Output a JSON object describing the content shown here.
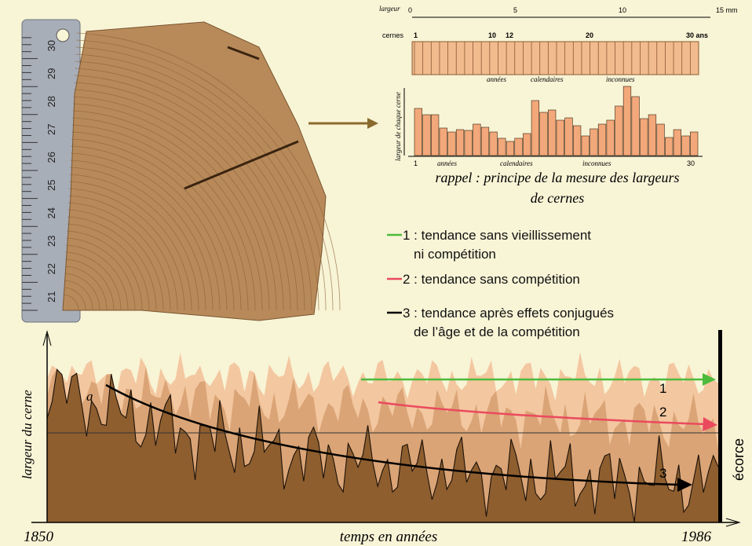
{
  "ruler": {
    "labels": [
      "21",
      "22",
      "23",
      "24",
      "25",
      "26",
      "27",
      "28",
      "29",
      "30"
    ]
  },
  "inset": {
    "width_label": "largeur",
    "width_ticks": [
      "0",
      "5",
      "10",
      "15 mm"
    ],
    "rings_label": "cernes",
    "ring_ticks": [
      "1",
      "10",
      "12",
      "20",
      "30 ans"
    ],
    "strip_labels": [
      "années",
      "calendaires",
      "inconnues"
    ],
    "y_label": "largeur de chaque cerne",
    "bottom_labels": [
      "1",
      "années",
      "calendaires",
      "inconnues",
      "30"
    ],
    "caption": [
      "rappel : principe de la mesure des largeurs",
      "de cernes"
    ]
  },
  "legend": [
    {
      "lines": [
        "1 : tendance sans vieillissement",
        "ni compétition"
      ]
    },
    {
      "lines": [
        "2 : tendance sans compétition"
      ]
    },
    {
      "lines": [
        "3 : tendance après effets conjugués",
        "de l’âge et de la compétition"
      ]
    }
  ],
  "chart": {
    "y_label": "largeur du cerne",
    "point_label": "a",
    "curve_labels": [
      "1",
      "2",
      "3"
    ],
    "bark_label": "écorce",
    "start": "1850",
    "x_label": "temps en années",
    "end": "1986"
  }
}
